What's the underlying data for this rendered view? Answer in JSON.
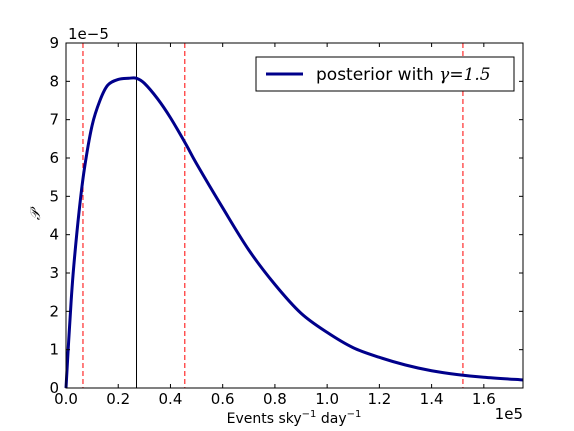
{
  "chart_data": {
    "type": "line",
    "title": "",
    "xlabel": "Events sky",
    "xlabel_sup1": "−1",
    "xlabel_mid": " day",
    "xlabel_sup2": "−1",
    "ylabel": "𝒫",
    "x_multiplier": "1e5",
    "y_multiplier": "1e−5",
    "xlim": [
      0,
      1.75
    ],
    "ylim": [
      0,
      9
    ],
    "x_ticks": [
      0.0,
      0.2,
      0.4,
      0.6,
      0.8,
      1.0,
      1.2,
      1.4,
      1.6
    ],
    "x_tick_labels": [
      "0.0",
      "0.2",
      "0.4",
      "0.6",
      "0.8",
      "1.0",
      "1.2",
      "1.4",
      "1.6"
    ],
    "y_ticks": [
      0,
      1,
      2,
      3,
      4,
      5,
      6,
      7,
      8,
      9
    ],
    "y_tick_labels": [
      "0",
      "1",
      "2",
      "3",
      "4",
      "5",
      "6",
      "7",
      "8",
      "9"
    ],
    "grid": false,
    "legend_position": "top-right",
    "series": [
      {
        "name": "posterior with ",
        "name_math": "γ=1.5",
        "color": "#00008b",
        "x": [
          0.0,
          0.01,
          0.02,
          0.03,
          0.05,
          0.07,
          0.1,
          0.13,
          0.16,
          0.2,
          0.24,
          0.27,
          0.3,
          0.35,
          0.4,
          0.46,
          0.5,
          0.6,
          0.7,
          0.8,
          0.9,
          1.0,
          1.1,
          1.2,
          1.3,
          1.4,
          1.5,
          1.6,
          1.75
        ],
        "y": [
          0.0,
          1.2,
          2.3,
          3.2,
          4.6,
          5.7,
          6.85,
          7.5,
          7.9,
          8.05,
          8.08,
          8.08,
          7.95,
          7.55,
          7.05,
          6.35,
          5.85,
          4.7,
          3.6,
          2.7,
          1.95,
          1.45,
          1.05,
          0.8,
          0.6,
          0.45,
          0.35,
          0.28,
          0.21
        ]
      }
    ],
    "vertical_lines": [
      {
        "x": 0.065,
        "style": "dashed",
        "color": "#ff0000"
      },
      {
        "x": 0.27,
        "style": "solid",
        "color": "#000000"
      },
      {
        "x": 0.455,
        "style": "dashed",
        "color": "#ff0000"
      },
      {
        "x": 1.52,
        "style": "dashed",
        "color": "#ff0000"
      }
    ]
  }
}
